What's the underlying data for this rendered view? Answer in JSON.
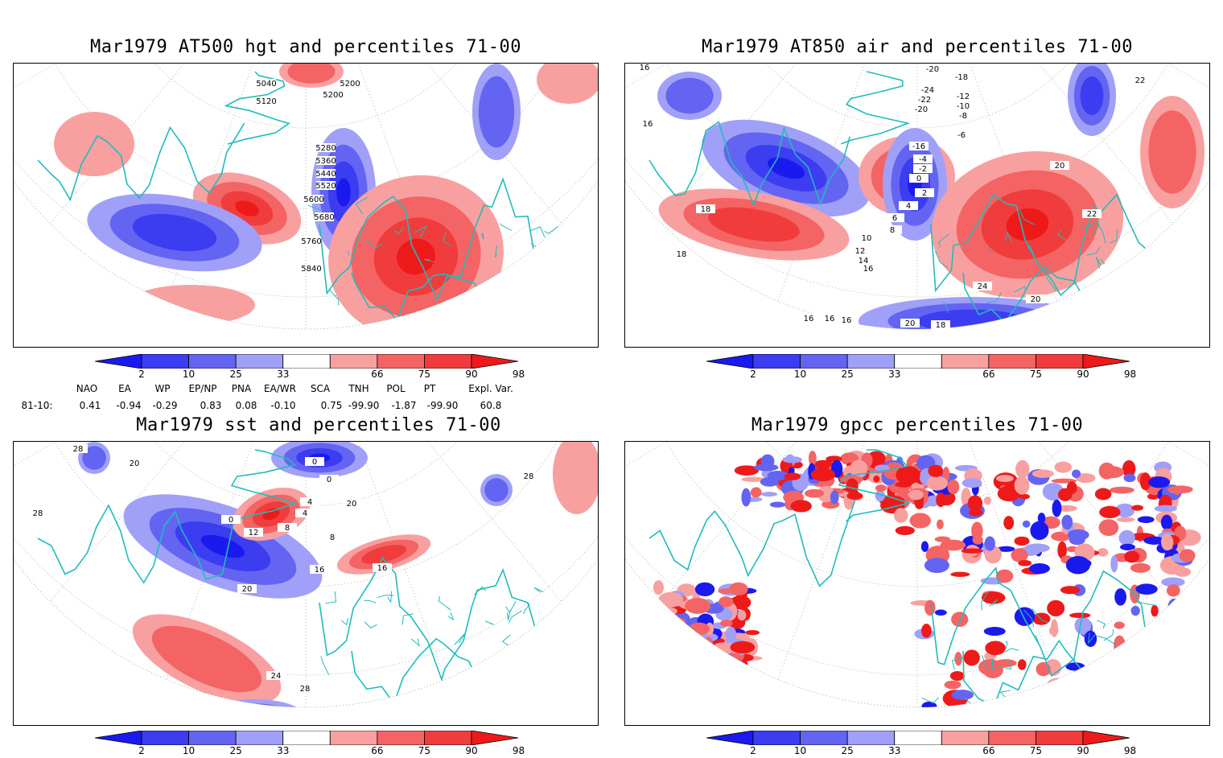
{
  "panels": [
    {
      "id": "p1",
      "title": "Mar1979 AT500 hgt and percentiles 71-00",
      "contour_labels": [
        "5040",
        "5120",
        "5200",
        "5200",
        "5280",
        "5360",
        "5440",
        "5520",
        "5600",
        "5680",
        "5760",
        "5840"
      ]
    },
    {
      "id": "p2",
      "title": "Mar1979 AT850 air and percentiles 71-00",
      "contour_labels": [
        "16",
        "16",
        "18",
        "18",
        "16",
        "-20",
        "-18",
        "-24",
        "-22",
        "-20",
        "-12",
        "-10",
        "-8",
        "-6",
        "-4",
        "-2",
        "0",
        "2",
        "4",
        "6",
        "8",
        "10",
        "12",
        "14",
        "16",
        "20",
        "20",
        "22",
        "22",
        "24",
        "20",
        "18",
        "16",
        "16",
        "-16"
      ]
    },
    {
      "id": "p3",
      "title": "Mar1979 sst and percentiles 71-00",
      "contour_labels": [
        "28",
        "20",
        "28",
        "28",
        "0",
        "0",
        "4",
        "4",
        "8",
        "12",
        "16",
        "20",
        "24",
        "28",
        "16",
        "8",
        "0",
        "20"
      ]
    },
    {
      "id": "p4",
      "title": "Mar1979 gpcc percentiles 71-00",
      "contour_labels": []
    }
  ],
  "colorbar": {
    "labels": [
      "2",
      "10",
      "25",
      "33",
      "66",
      "75",
      "90",
      "98"
    ],
    "colors": [
      "#1a1aee",
      "#3c3cf0",
      "#6464f2",
      "#a0a0f8",
      "#ffffff",
      "#f8a0a0",
      "#f46464",
      "#f03c3c",
      "#ee1a1a"
    ]
  },
  "indices": {
    "row_label": "81-10:",
    "headers": [
      "NAO",
      "EA",
      "WP",
      "EP/NP",
      "PNA",
      "EA/WR",
      "SCA",
      "TNH",
      "POL",
      "PT",
      "Expl. Var."
    ],
    "values": [
      "0.41",
      "-0.94",
      "-0.29",
      "0.83",
      "0.08",
      "-0.10",
      "0.75",
      "-99.90",
      "-1.87",
      "-99.90",
      "60.8"
    ]
  },
  "colors": {
    "coastline": "#22bbbb",
    "positive": "#ee2222",
    "negative": "#2222ee",
    "contour": "#000000"
  }
}
